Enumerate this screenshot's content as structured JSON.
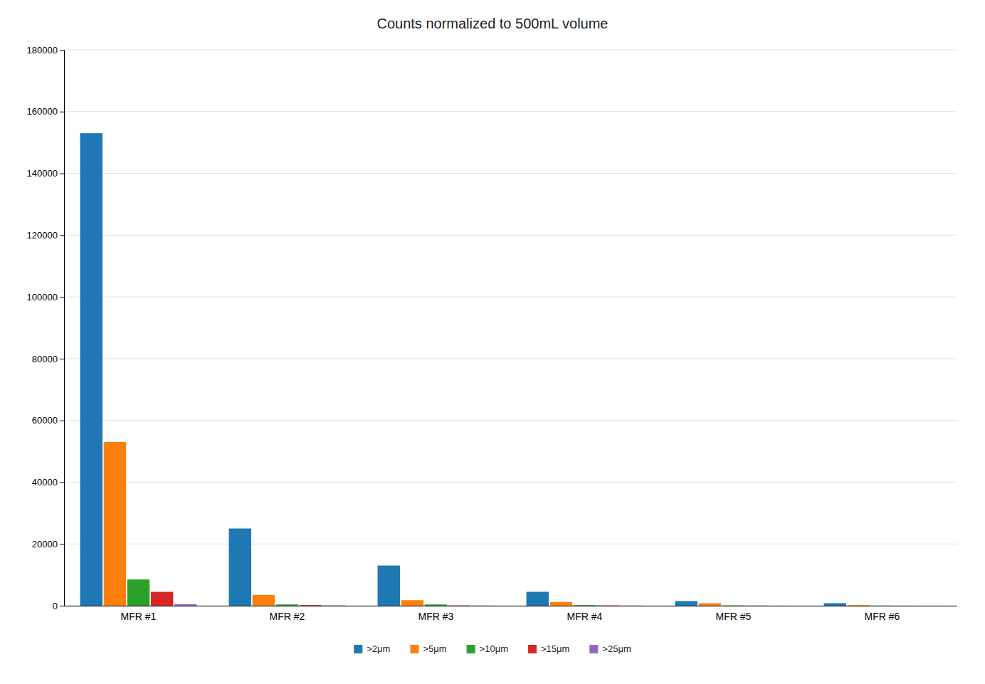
{
  "chart_data": {
    "type": "bar",
    "title": "Counts normalized to 500mL volume",
    "categories": [
      "MFR #1",
      "MFR #2",
      "MFR #3",
      "MFR #4",
      "MFR #5",
      "MFR #6"
    ],
    "series": [
      {
        "name": ">2μm",
        "values": [
          153000,
          25000,
          13000,
          4500,
          1500,
          800
        ]
      },
      {
        "name": ">5μm",
        "values": [
          53000,
          3500,
          1800,
          1200,
          800,
          200
        ]
      },
      {
        "name": ">10μm",
        "values": [
          8500,
          400,
          400,
          200,
          100,
          50
        ]
      },
      {
        "name": ">15μm",
        "values": [
          4500,
          200,
          100,
          100,
          50,
          20
        ]
      },
      {
        "name": ">25μm",
        "values": [
          500,
          100,
          50,
          50,
          20,
          10
        ]
      }
    ],
    "ylim": [
      0,
      180000
    ],
    "yticks": [
      0,
      20000,
      40000,
      60000,
      80000,
      100000,
      120000,
      140000,
      160000,
      180000
    ],
    "grid": true,
    "legend": "bottom"
  }
}
